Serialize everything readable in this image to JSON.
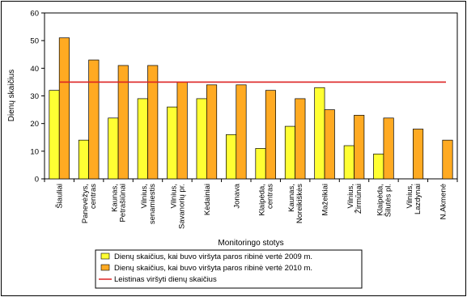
{
  "chart_data": {
    "type": "bar",
    "categories": [
      "Šiauliai",
      "Panevėžys,\ncentras",
      "Kaunas,\nPetrašiūnai",
      "Vilnius,\nsenamiestis",
      "Vilnius,\nSavanorių pr.",
      "Kėdainiai",
      "Jonava",
      "Klaipėda,\ncentras",
      "Kaunas,\nNoreikiškės",
      "Mažeikiai",
      "Vilnius,\nŽirmūnai",
      "Klaipėda,\nŠilutės pl.",
      "Vilnius,\nLazdynai",
      "N.Akmenė"
    ],
    "series": [
      {
        "name": "Dienų skaičius, kai buvo viršyta paros ribinė vertė 2009 m.",
        "color": "#ffff33",
        "values": [
          32,
          14,
          22,
          29,
          26,
          29,
          16,
          11,
          19,
          33,
          12,
          9,
          null,
          null
        ]
      },
      {
        "name": "Dienų skaičius, kai buvo viršyta paros ribinė vertė 2010 m.",
        "color": "#ffaa22",
        "values": [
          51,
          43,
          41,
          41,
          35,
          34,
          34,
          32,
          29,
          25,
          23,
          22,
          18,
          14
        ]
      }
    ],
    "threshold": {
      "name": "Leistinas viršyti dienų skaičius",
      "value": 35,
      "color": "#dd2222"
    },
    "xlabel": "Monitoringo stotys",
    "ylabel": "Dienų skaičius",
    "ylim": [
      0,
      60
    ],
    "yticks": [
      0,
      10,
      20,
      30,
      40,
      50,
      60
    ],
    "grid": false,
    "legend_position": "bottom"
  }
}
